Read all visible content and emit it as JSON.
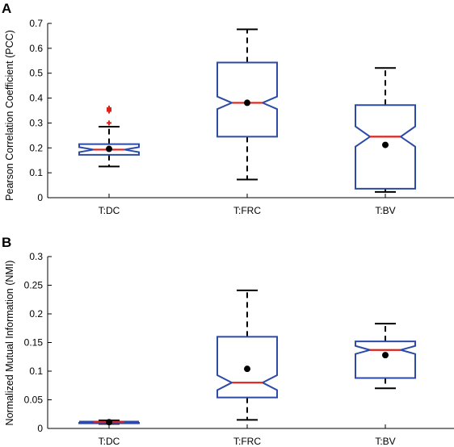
{
  "chart_data": [
    {
      "panel": "A",
      "type": "box",
      "ylabel": "Pearson Correlation Coefficient (PCC)",
      "xlabel": "",
      "categories": [
        "T:DC",
        "T:FRC",
        "T:BV"
      ],
      "ylim": [
        0,
        0.7
      ],
      "yticks": [
        0,
        0.1,
        0.2,
        0.3,
        0.4,
        0.5,
        0.6,
        0.7
      ],
      "grid": false,
      "boxes": [
        {
          "category": "T:DC",
          "whisker_low": 0.125,
          "q1": 0.172,
          "median": 0.193,
          "q3": 0.215,
          "whisker_high": 0.285,
          "notch_low": 0.183,
          "notch_high": 0.203,
          "mean": 0.196,
          "outliers": [
            0.3,
            0.348,
            0.352,
            0.356,
            0.36
          ]
        },
        {
          "category": "T:FRC",
          "whisker_low": 0.073,
          "q1": 0.245,
          "median": 0.381,
          "q3": 0.543,
          "whisker_high": 0.676,
          "notch_low": 0.356,
          "notch_high": 0.406,
          "mean": 0.381,
          "outliers": []
        },
        {
          "category": "T:BV",
          "whisker_low": 0.023,
          "q1": 0.036,
          "median": 0.245,
          "q3": 0.372,
          "whisker_high": 0.521,
          "notch_low": 0.205,
          "notch_high": 0.286,
          "mean": 0.212,
          "outliers": []
        }
      ]
    },
    {
      "panel": "B",
      "type": "box",
      "ylabel": "Normalized Mutual Information (NMI)",
      "xlabel": "",
      "categories": [
        "T:DC",
        "T:FRC",
        "T:BV"
      ],
      "ylim": [
        0,
        0.3
      ],
      "yticks": [
        0,
        0.05,
        0.1,
        0.15,
        0.2,
        0.25,
        0.3
      ],
      "grid": false,
      "boxes": [
        {
          "category": "T:DC",
          "whisker_low": 0.008,
          "q1": 0.009,
          "median": 0.011,
          "q3": 0.012,
          "whisker_high": 0.014,
          "notch_low": 0.01,
          "notch_high": 0.012,
          "mean": 0.011,
          "outliers": []
        },
        {
          "category": "T:FRC",
          "whisker_low": 0.015,
          "q1": 0.054,
          "median": 0.08,
          "q3": 0.16,
          "whisker_high": 0.241,
          "notch_low": 0.067,
          "notch_high": 0.093,
          "mean": 0.104,
          "outliers": []
        },
        {
          "category": "T:BV",
          "whisker_low": 0.07,
          "q1": 0.088,
          "median": 0.137,
          "q3": 0.152,
          "whisker_high": 0.183,
          "notch_low": 0.13,
          "notch_high": 0.144,
          "mean": 0.128,
          "outliers": []
        }
      ]
    }
  ],
  "colors": {
    "box": "#2c4aa8",
    "median": "#e0201b",
    "whisker": "#000000",
    "mean": "#000000",
    "outlier": "#e0201b",
    "axis": "#000000"
  }
}
